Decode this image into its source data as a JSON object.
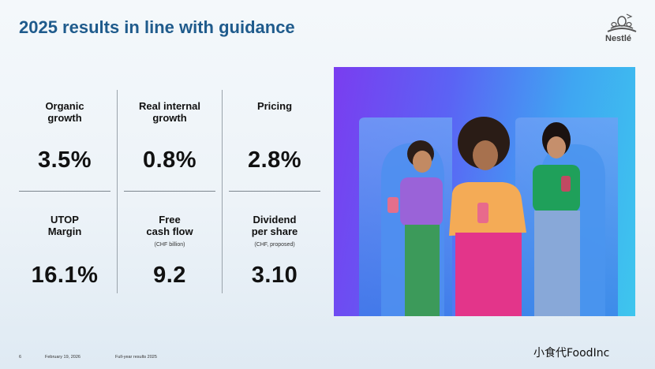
{
  "title": "2025 results in line with guidance",
  "logo": {
    "word": "Nestlé"
  },
  "kpis": [
    {
      "label": "Organic\ngrowth",
      "sub": "",
      "value": "3.5%"
    },
    {
      "label": "Real internal\ngrowth",
      "sub": "",
      "value": "0.8%"
    },
    {
      "label": "Pricing",
      "sub": "",
      "value": "2.8%"
    },
    {
      "label": "UTOP\nMargin",
      "sub": "",
      "value": "16.1%"
    },
    {
      "label": "Free\ncash flow",
      "sub": "(CHF billion)",
      "value": "9.2"
    },
    {
      "label": "Dividend\nper share",
      "sub": "(CHF, proposed)",
      "value": "3.10"
    }
  ],
  "footer": {
    "page": "6",
    "date": "February 19, 2026",
    "doc": "Full-year results 2025"
  },
  "watermark": "小食代FoodInc",
  "colors": {
    "title": "#1f5b8c",
    "photo_bg_start": "#7a3df0",
    "photo_bg_end": "#3ec6ee"
  }
}
